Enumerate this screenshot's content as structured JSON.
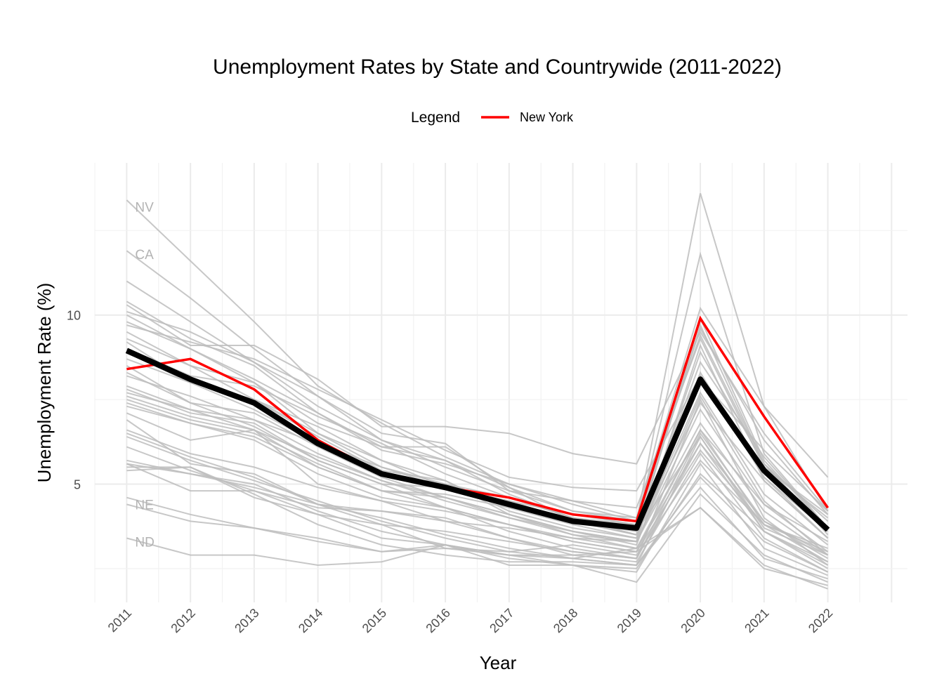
{
  "chart_data": {
    "type": "line",
    "title": "Unemployment Rates by State and Countrywide (2011-2022)",
    "xlabel": "Year",
    "ylabel": "Unemployment Rate (%)",
    "x": [
      2011,
      2012,
      2013,
      2014,
      2015,
      2016,
      2017,
      2018,
      2019,
      2020,
      2021,
      2022
    ],
    "x_tick_labels": [
      "2011",
      "2012",
      "2013",
      "2014",
      "2015",
      "2016",
      "2017",
      "2018",
      "2019",
      "2020",
      "2021",
      "2022"
    ],
    "y_ticks": [
      5,
      10
    ],
    "y_tick_labels": [
      "5",
      "10"
    ],
    "xlim": [
      2010.5,
      2023.25
    ],
    "ylim": [
      1.5,
      14.5
    ],
    "grid": true,
    "legend": {
      "title": "Legend",
      "placement": "top",
      "entries": [
        {
          "label": "New York",
          "color": "#ff0000"
        }
      ]
    },
    "highlight_series": [
      {
        "name": "New York",
        "color": "#ff0000",
        "values": [
          8.4,
          8.7,
          7.8,
          6.3,
          5.3,
          4.9,
          4.6,
          4.1,
          3.9,
          9.9,
          7.0,
          4.3
        ]
      }
    ],
    "countrywide_series": {
      "color": "#000000",
      "values": [
        8.95,
        8.1,
        7.4,
        6.2,
        5.3,
        4.9,
        4.4,
        3.9,
        3.7,
        8.1,
        5.4,
        3.65
      ]
    },
    "state_labels": [
      {
        "text": "NV",
        "x": 2011,
        "y": 13.2
      },
      {
        "text": "CA",
        "x": 2011,
        "y": 11.8
      },
      {
        "text": "NE",
        "x": 2011,
        "y": 4.4
      },
      {
        "text": "ND",
        "x": 2011,
        "y": 3.3
      }
    ],
    "state_series_color": "#bdbdbd",
    "state_series": [
      [
        13.4,
        11.6,
        9.8,
        7.9,
        6.8,
        5.8,
        5.0,
        4.4,
        3.9,
        13.6,
        7.3,
        5.2
      ],
      [
        11.9,
        10.5,
        9.0,
        7.6,
        6.3,
        5.5,
        4.8,
        4.2,
        4.0,
        10.2,
        7.3,
        4.2
      ],
      [
        11.0,
        9.8,
        8.6,
        7.3,
        6.3,
        5.7,
        4.7,
        4.0,
        3.8,
        11.8,
        5.9,
        3.7
      ],
      [
        10.4,
        9.3,
        8.5,
        7.1,
        6.1,
        5.7,
        4.9,
        4.2,
        3.9,
        8.1,
        6.0,
        4.2
      ],
      [
        10.3,
        9.1,
        9.1,
        8.1,
        6.7,
        6.7,
        6.5,
        5.9,
        5.6,
        9.5,
        6.5,
        4.2
      ],
      [
        10.1,
        9.5,
        8.6,
        7.6,
        6.5,
        6.2,
        4.8,
        4.5,
        4.3,
        9.3,
        5.5,
        4.0
      ],
      [
        10.0,
        9.0,
        8.0,
        6.5,
        5.7,
        5.1,
        4.1,
        3.6,
        3.3,
        9.1,
        5.1,
        3.4
      ],
      [
        9.8,
        9.0,
        8.1,
        7.1,
        6.0,
        5.6,
        5.0,
        4.5,
        4.0,
        9.4,
        5.6,
        3.9
      ],
      [
        9.7,
        9.2,
        8.7,
        7.8,
        6.9,
        6.0,
        5.2,
        4.9,
        4.8,
        8.2,
        5.5,
        4.1
      ],
      [
        9.5,
        8.5,
        7.5,
        6.5,
        5.5,
        5.0,
        4.6,
        4.0,
        3.6,
        9.7,
        5.6,
        3.6
      ],
      [
        9.3,
        8.5,
        8.0,
        6.8,
        6.1,
        6.1,
        4.9,
        3.9,
        3.5,
        9.9,
        5.7,
        3.7
      ],
      [
        9.2,
        8.0,
        7.5,
        6.4,
        5.4,
        5.1,
        4.2,
        3.7,
        3.4,
        8.9,
        5.6,
        3.5
      ],
      [
        9.0,
        8.2,
        7.9,
        7.0,
        6.2,
        5.3,
        4.6,
        4.0,
        3.5,
        7.4,
        5.1,
        3.4
      ],
      [
        8.9,
        8.0,
        7.2,
        6.2,
        5.3,
        5.0,
        4.4,
        4.0,
        3.5,
        8.6,
        5.8,
        3.7
      ],
      [
        8.7,
        8.0,
        7.5,
        6.7,
        5.7,
        4.9,
        4.5,
        4.1,
        3.8,
        9.6,
        6.3,
        4.1
      ],
      [
        8.5,
        7.4,
        6.7,
        5.7,
        5.0,
        4.9,
        4.5,
        3.9,
        3.5,
        7.7,
        4.7,
        3.2
      ],
      [
        8.3,
        7.4,
        7.1,
        6.1,
        5.2,
        4.6,
        4.1,
        3.6,
        3.2,
        8.2,
        5.2,
        3.4
      ],
      [
        8.2,
        7.6,
        6.9,
        5.9,
        5.1,
        4.5,
        4.0,
        3.6,
        3.3,
        6.8,
        4.2,
        2.9
      ],
      [
        7.9,
        7.2,
        6.6,
        5.5,
        4.8,
        4.6,
        4.0,
        3.5,
        3.3,
        7.6,
        4.5,
        2.9
      ],
      [
        7.8,
        7.1,
        6.8,
        5.7,
        5.0,
        4.3,
        3.8,
        3.4,
        3.1,
        6.6,
        4.4,
        3.0
      ],
      [
        7.7,
        7.2,
        6.9,
        6.2,
        5.5,
        4.9,
        4.3,
        3.8,
        3.4,
        8.3,
        5.2,
        3.6
      ],
      [
        7.6,
        7.0,
        6.6,
        5.8,
        5.1,
        4.6,
        4.1,
        3.5,
        3.1,
        6.2,
        3.9,
        2.8
      ],
      [
        7.5,
        6.9,
        6.5,
        5.6,
        4.8,
        4.3,
        3.8,
        3.3,
        3.0,
        6.0,
        3.8,
        2.7
      ],
      [
        7.4,
        6.8,
        6.3,
        5.3,
        4.6,
        4.3,
        3.6,
        3.1,
        2.8,
        7.5,
        4.0,
        2.6
      ],
      [
        7.3,
        6.8,
        6.4,
        5.5,
        4.8,
        4.7,
        4.3,
        3.9,
        3.6,
        6.4,
        3.7,
        2.9
      ],
      [
        7.1,
        6.3,
        6.6,
        5.0,
        4.5,
        3.9,
        3.4,
        3.0,
        2.8,
        6.2,
        3.6,
        2.6
      ],
      [
        6.9,
        5.6,
        5.3,
        4.4,
        4.2,
        3.9,
        3.7,
        3.4,
        3.3,
        7.2,
        4.4,
        3.3
      ],
      [
        6.6,
        5.9,
        5.5,
        4.9,
        4.5,
        4.2,
        3.8,
        3.3,
        3.0,
        6.6,
        3.8,
        3.0
      ],
      [
        6.5,
        5.8,
        5.2,
        4.4,
        3.8,
        3.6,
        3.3,
        3.0,
        2.8,
        6.5,
        3.9,
        2.9
      ],
      [
        6.4,
        5.7,
        5.1,
        4.5,
        3.9,
        3.4,
        3.0,
        2.8,
        2.6,
        6.4,
        3.6,
        2.5
      ],
      [
        6.1,
        5.4,
        4.8,
        4.3,
        4.2,
        4.0,
        3.4,
        2.9,
        2.7,
        5.9,
        3.4,
        2.4
      ],
      [
        5.7,
        5.3,
        5.0,
        4.2,
        3.6,
        3.2,
        2.9,
        2.6,
        2.4,
        5.6,
        3.1,
        2.3
      ],
      [
        5.6,
        5.3,
        4.9,
        4.4,
        4.0,
        3.5,
        3.1,
        2.8,
        2.6,
        5.2,
        3.3,
        2.4
      ],
      [
        5.6,
        4.8,
        4.8,
        4.1,
        3.8,
        3.1,
        3.0,
        3.2,
        2.9,
        5.7,
        3.8,
        3.1
      ],
      [
        5.5,
        5.5,
        4.7,
        3.8,
        3.2,
        2.9,
        2.7,
        2.7,
        2.6,
        4.9,
        2.8,
        2.2
      ],
      [
        5.4,
        5.5,
        4.6,
        4.1,
        3.4,
        3.2,
        2.8,
        2.6,
        2.5,
        5.3,
        3.6,
        2.7
      ],
      [
        4.6,
        4.1,
        3.7,
        3.4,
        3.0,
        3.2,
        2.9,
        2.9,
        3.0,
        4.3,
        2.6,
        1.9
      ],
      [
        4.4,
        3.9,
        3.7,
        3.3,
        3.0,
        3.1,
        2.9,
        2.8,
        3.1,
        4.3,
        2.5,
        2.0
      ],
      [
        3.4,
        2.9,
        2.9,
        2.6,
        2.7,
        3.2,
        2.6,
        2.6,
        2.1,
        4.7,
        2.9,
        2.1
      ]
    ]
  }
}
